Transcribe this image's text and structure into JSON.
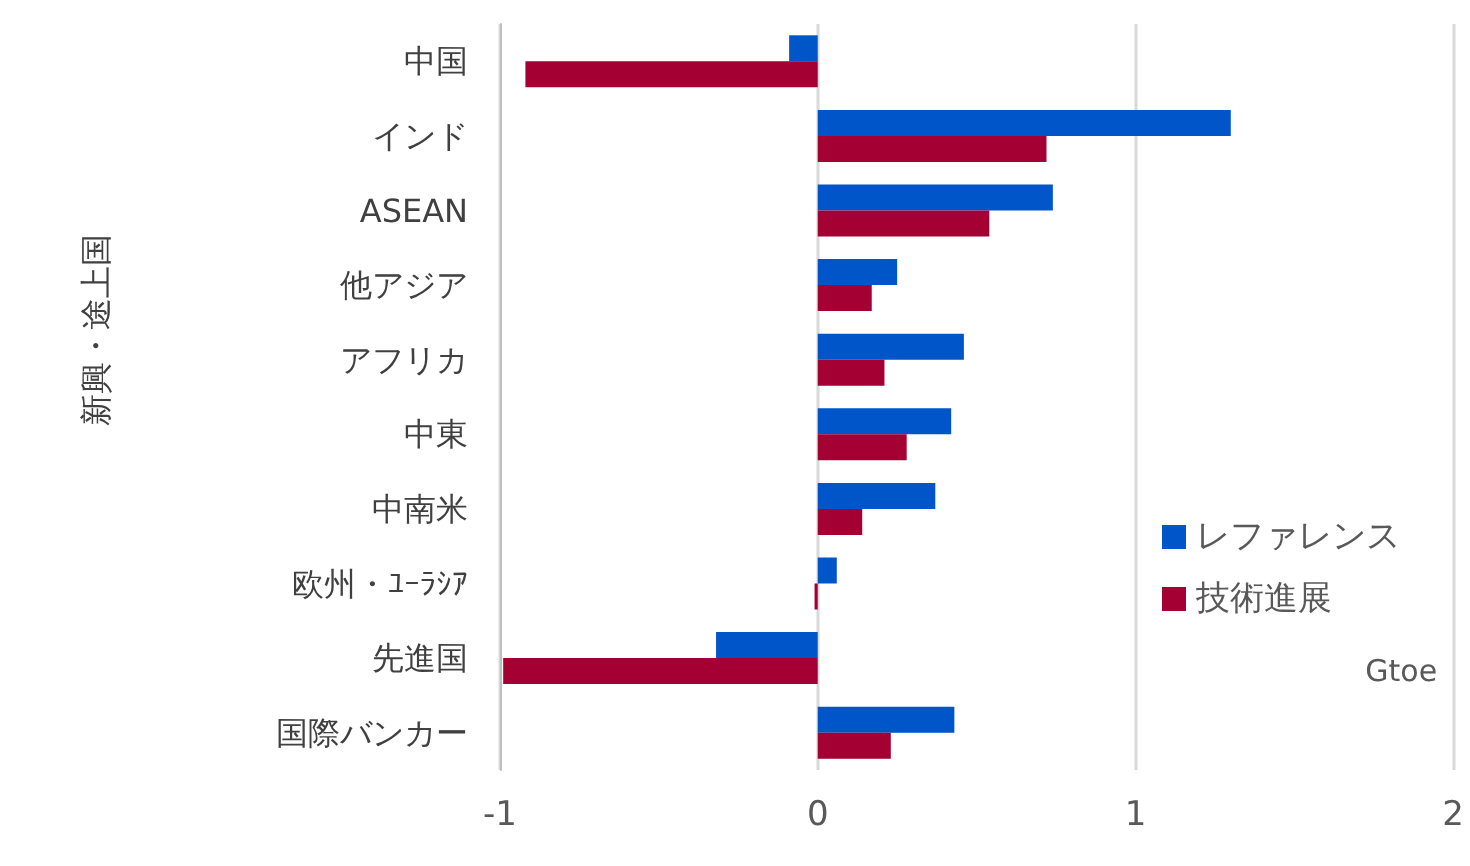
{
  "chart_data": {
    "type": "bar",
    "orientation": "horizontal",
    "xlabel": "Gtoe",
    "categories": [
      "中国",
      "インド",
      "ASEAN",
      "他アジア",
      "アフリカ",
      "中東",
      "中南米",
      "欧州・ﾕｰﾗｼｱ",
      "先進国",
      "国際バンカー"
    ],
    "series": [
      {
        "name": "レファレンス",
        "color": "#0055c8",
        "values": [
          -0.09,
          1.3,
          0.74,
          0.25,
          0.46,
          0.42,
          0.37,
          0.06,
          -0.32,
          0.43
        ]
      },
      {
        "name": "技術進展",
        "color": "#a50034",
        "values": [
          -0.92,
          0.72,
          0.54,
          0.17,
          0.21,
          0.28,
          0.14,
          -0.01,
          -0.99,
          0.23
        ]
      }
    ],
    "xlim": [
      -1,
      2
    ],
    "xticks": [
      -1,
      0,
      1,
      2
    ],
    "grid": "x",
    "legend": "right",
    "annotations": [
      "新興・途上国"
    ]
  }
}
